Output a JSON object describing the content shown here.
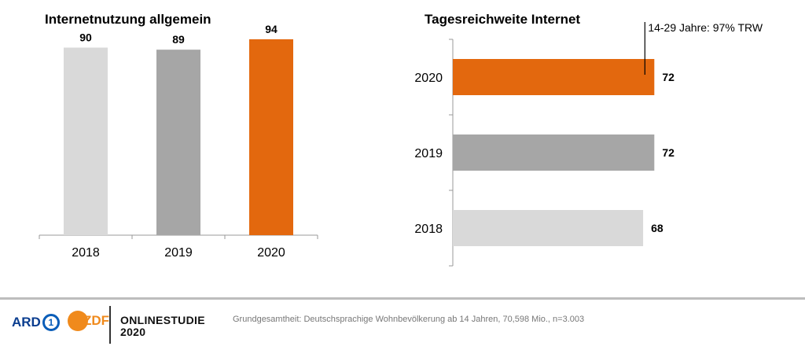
{
  "chart_data": [
    {
      "type": "bar",
      "orientation": "vertical",
      "title": "Internetnutzung allgemein",
      "categories": [
        "2018",
        "2019",
        "2020"
      ],
      "values": [
        90,
        89,
        94
      ],
      "colors": [
        "#d9d9d9",
        "#a6a6a6",
        "#e3680e"
      ],
      "ylim": [
        0,
        100
      ],
      "grid": false,
      "xlabel": "",
      "ylabel": ""
    },
    {
      "type": "bar",
      "orientation": "horizontal",
      "title": "Tagesreichweite Internet",
      "categories": [
        "2020",
        "2019",
        "2018"
      ],
      "values": [
        72,
        72,
        68
      ],
      "colors": [
        "#e3680e",
        "#a6a6a6",
        "#d9d9d9"
      ],
      "xlim": [
        0,
        100
      ],
      "grid": false,
      "annotation": "14-29 Jahre: 97% TRW",
      "xlabel": "",
      "ylabel": ""
    }
  ],
  "footer": {
    "ard": "ARD",
    "ard_badge": "1",
    "zdf": "ZDF",
    "studie_line1": "ONLINESTUDIE",
    "studie_line2": "2020",
    "note": "Grundgesamtheit: Deutschsprachige Wohnbevölkerung ab 14 Jahren, 70,598 Mio., n=3.003"
  }
}
